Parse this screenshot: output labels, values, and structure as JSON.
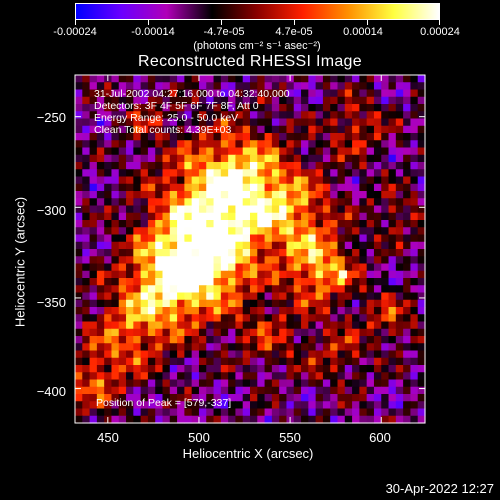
{
  "colorbar": {
    "tick_labels": [
      "-0.00024",
      "-0.00014",
      "-4.7e-05",
      "4.7e-05",
      "0.00014",
      "0.00024"
    ],
    "units": "(photons cm⁻² s⁻¹ asec⁻²)",
    "range": [
      -0.00024,
      0.00024
    ],
    "colormap": [
      "#0000ff",
      "#6a00ff",
      "#b000b8",
      "#000000",
      "#8b0000",
      "#ff2000",
      "#ff9000",
      "#ffff40",
      "#ffffff"
    ]
  },
  "chart_data": {
    "type": "heatmap",
    "title": "Reconstructed RHESSI Image",
    "xlabel": "Heliocentric X (arcsec)",
    "ylabel": "Heliocentric Y (arcsec)",
    "xlim": [
      432,
      624
    ],
    "ylim": [
      -419,
      -227
    ],
    "x_ticks": [
      450,
      500,
      550,
      600
    ],
    "x_tick_labels": [
      "450",
      "500",
      "550",
      "600"
    ],
    "y_ticks": [
      -250,
      -300,
      -350,
      -400
    ],
    "y_tick_labels": [
      "−250",
      "−300",
      "−350",
      "−400"
    ],
    "info_lines": [
      "31-Jul-2002 04:27:16.000 to 04:32:40.000",
      "Detectors: 3F 4F 5F 6F 7F 8F, Att 0",
      "Energy Range: 25.0 - 50.0 keV",
      "Clean    Total counts: 4.39E+03"
    ],
    "peak_label": "Position of Peak = [579,-337]",
    "peak_position": [
      579,
      -337
    ]
  },
  "footer": {
    "date": "30-Apr-2022 12:27"
  }
}
